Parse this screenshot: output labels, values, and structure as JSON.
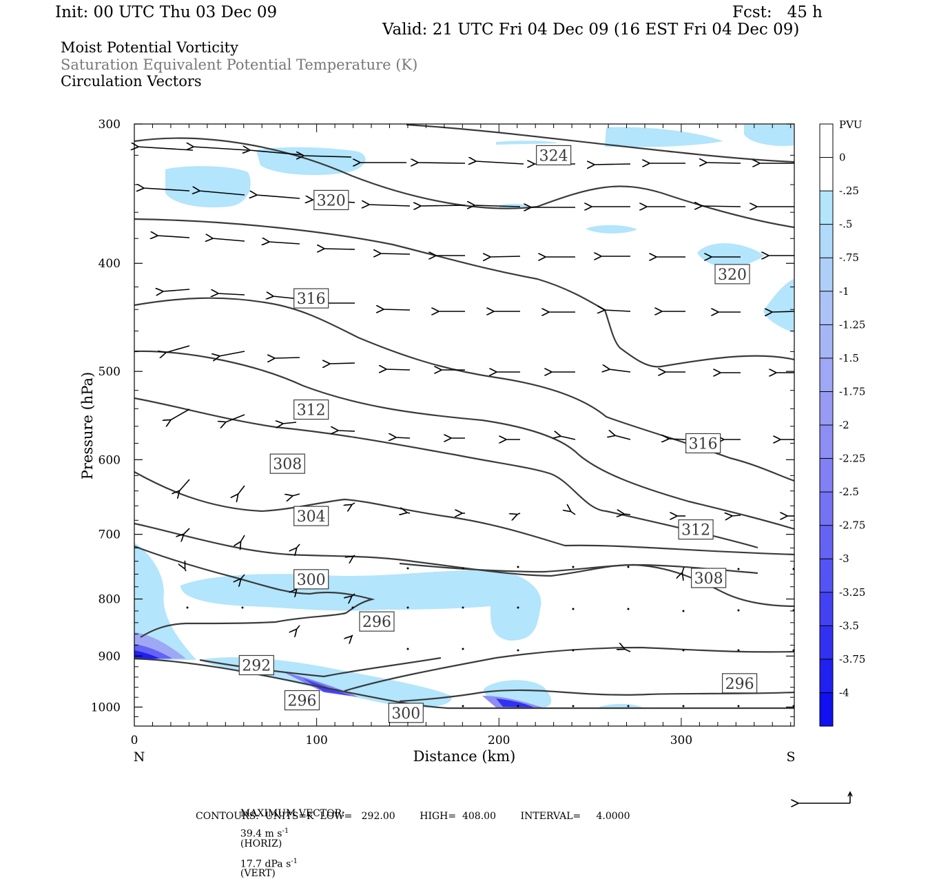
{
  "header": {
    "init": "Init: 00 UTC Thu 03 Dec 09",
    "fcst": "Fcst:   45 h",
    "valid": "Valid: 21 UTC Fri 04 Dec 09 (16 EST Fri 04 Dec 09)"
  },
  "fields": {
    "mpv": "Moist Potential Vorticity",
    "theta": "Saturation Equivalent Potential Temperature (K)",
    "vectors": "Circulation Vectors"
  },
  "footer": {
    "max_vector_label": "MAXIMUM VECTOR:",
    "horiz_value": "39.4 m s",
    "horiz_exp": "-1",
    "horiz_tag": "(HORIZ)",
    "vert_value": "17.7 dPa s",
    "vert_exp": "-1",
    "vert_tag": "(VERT)",
    "contours": "CONTOURS:  UNITS=K  LOW=   292.00        HIGH=  408.00        INTERVAL=     4.0000"
  },
  "colors": {
    "contour": "#3a3a3a",
    "arrow": "#000000",
    "pv_light": "#b3e5fc",
    "pv_deep": "#1010f0"
  },
  "chart_data": {
    "type": "cross-section",
    "xlabel": "Distance (km)",
    "ylabel": "Pressure (hPa)",
    "x_range": [
      0,
      362
    ],
    "y_range": [
      300,
      1040
    ],
    "y_scale": "log-pressure",
    "x_ticks": [
      "0",
      "100",
      "200",
      "300"
    ],
    "x_end_labels": {
      "left": "N",
      "right": "S"
    },
    "y_ticks": [
      "300",
      "400",
      "500",
      "600",
      "700",
      "800",
      "900",
      "1000"
    ],
    "colorbar": {
      "unit": "PVU",
      "labels": [
        "0",
        "-.25",
        "-.5",
        "-.75",
        "-1",
        "-1.25",
        "-1.5",
        "-1.75",
        "-2",
        "-2.25",
        "-2.5",
        "-2.75",
        "-3",
        "-3.25",
        "-3.5",
        "-3.75",
        "-4"
      ],
      "colors": [
        "#ffffff",
        "#ffffff",
        "#b3e5fc",
        "#b0daf9",
        "#aecff7",
        "#abc3f6",
        "#a6b6f5",
        "#9fa8f4",
        "#979bf4",
        "#8d8df4",
        "#8180f4",
        "#7373f4",
        "#6463f4",
        "#5453f4",
        "#4342f3",
        "#3231f2",
        "#2020f1",
        "#1010f0"
      ]
    },
    "contour_labels": [
      {
        "text": "324",
        "x": 230,
        "p": 320
      },
      {
        "text": "320",
        "x": 108,
        "p": 351
      },
      {
        "text": "320",
        "x": 328,
        "p": 409
      },
      {
        "text": "316",
        "x": 97,
        "p": 430
      },
      {
        "text": "316",
        "x": 312,
        "p": 580
      },
      {
        "text": "312",
        "x": 97,
        "p": 541
      },
      {
        "text": "312",
        "x": 308,
        "p": 693
      },
      {
        "text": "308",
        "x": 84,
        "p": 605
      },
      {
        "text": "308",
        "x": 315,
        "p": 766
      },
      {
        "text": "304",
        "x": 97,
        "p": 674
      },
      {
        "text": "300",
        "x": 97,
        "p": 768
      },
      {
        "text": "296",
        "x": 133,
        "p": 838
      },
      {
        "text": "296",
        "x": 332,
        "p": 952
      },
      {
        "text": "292",
        "x": 67,
        "p": 917
      },
      {
        "text": "296",
        "x": 92,
        "p": 986
      },
      {
        "text": "300",
        "x": 149,
        "p": 1012
      }
    ]
  }
}
